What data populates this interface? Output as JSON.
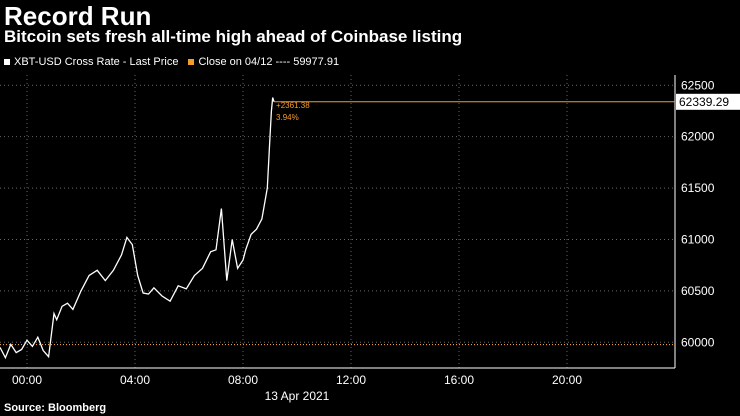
{
  "header": {
    "title": "Record Run",
    "subtitle": "Bitcoin sets fresh all-time high ahead of Coinbase listing"
  },
  "legend": [
    {
      "label": "XBT-USD Cross Rate - Last Price",
      "color": "#ffffff"
    },
    {
      "label": "Close on 04/12 ---- 59977.91",
      "color": "#f39c2c"
    }
  ],
  "source": "Source: Bloomberg",
  "colors": {
    "background": "#000000",
    "line": "#ffffff",
    "reference": "#f39c2c",
    "grid": "#666666"
  },
  "chart_data": {
    "type": "line",
    "title": "Record Run",
    "subtitle": "Bitcoin sets fresh all-time high ahead of Coinbase listing",
    "xlabel": "13 Apr 2021",
    "ylabel": "",
    "x_tick_labels": [
      "00:00",
      "04:00",
      "08:00",
      "12:00",
      "16:00",
      "20:00"
    ],
    "x_ticks_hours": [
      0,
      4,
      8,
      12,
      16,
      20
    ],
    "xlim_hours": [
      -1,
      24
    ],
    "y_tick_labels": [
      "60000",
      "60500",
      "61000",
      "61500",
      "62000",
      "62500"
    ],
    "y_ticks": [
      60000,
      60500,
      61000,
      61500,
      62000,
      62500
    ],
    "ylim": [
      59750,
      62600
    ],
    "grid": true,
    "legend_position": "top-left",
    "series": [
      {
        "name": "XBT-USD Cross Rate - Last Price",
        "color": "#ffffff",
        "x_hours": [
          -1.0,
          -0.8,
          -0.6,
          -0.4,
          -0.2,
          0.0,
          0.2,
          0.4,
          0.6,
          0.8,
          1.0,
          1.1,
          1.3,
          1.5,
          1.7,
          2.0,
          2.3,
          2.6,
          2.9,
          3.2,
          3.5,
          3.7,
          3.9,
          4.1,
          4.3,
          4.5,
          4.7,
          5.0,
          5.3,
          5.6,
          5.9,
          6.2,
          6.5,
          6.8,
          7.0,
          7.2,
          7.4,
          7.6,
          7.8,
          8.0,
          8.1,
          8.3,
          8.5,
          8.7,
          8.9,
          9.0,
          9.05,
          9.1,
          9.15
        ],
        "values": [
          59950,
          59850,
          59980,
          59900,
          59930,
          60020,
          59960,
          60050,
          59920,
          59860,
          60280,
          60220,
          60350,
          60380,
          60320,
          60500,
          60650,
          60700,
          60600,
          60700,
          60850,
          61020,
          60950,
          60650,
          60480,
          60470,
          60530,
          60450,
          60400,
          60550,
          60520,
          60650,
          60720,
          60880,
          60900,
          61300,
          60600,
          61000,
          60720,
          60800,
          60900,
          61050,
          61100,
          61200,
          61500,
          62000,
          62250,
          62380,
          62339
        ]
      },
      {
        "name": "Close on 04/12 ---- 59977.91",
        "color": "#f39c2c",
        "values": [
          59977.91
        ]
      }
    ],
    "last_price_label": "62339.29",
    "last_price": 62339.29,
    "annotations": [
      "+2361.38",
      "3.94%"
    ]
  }
}
